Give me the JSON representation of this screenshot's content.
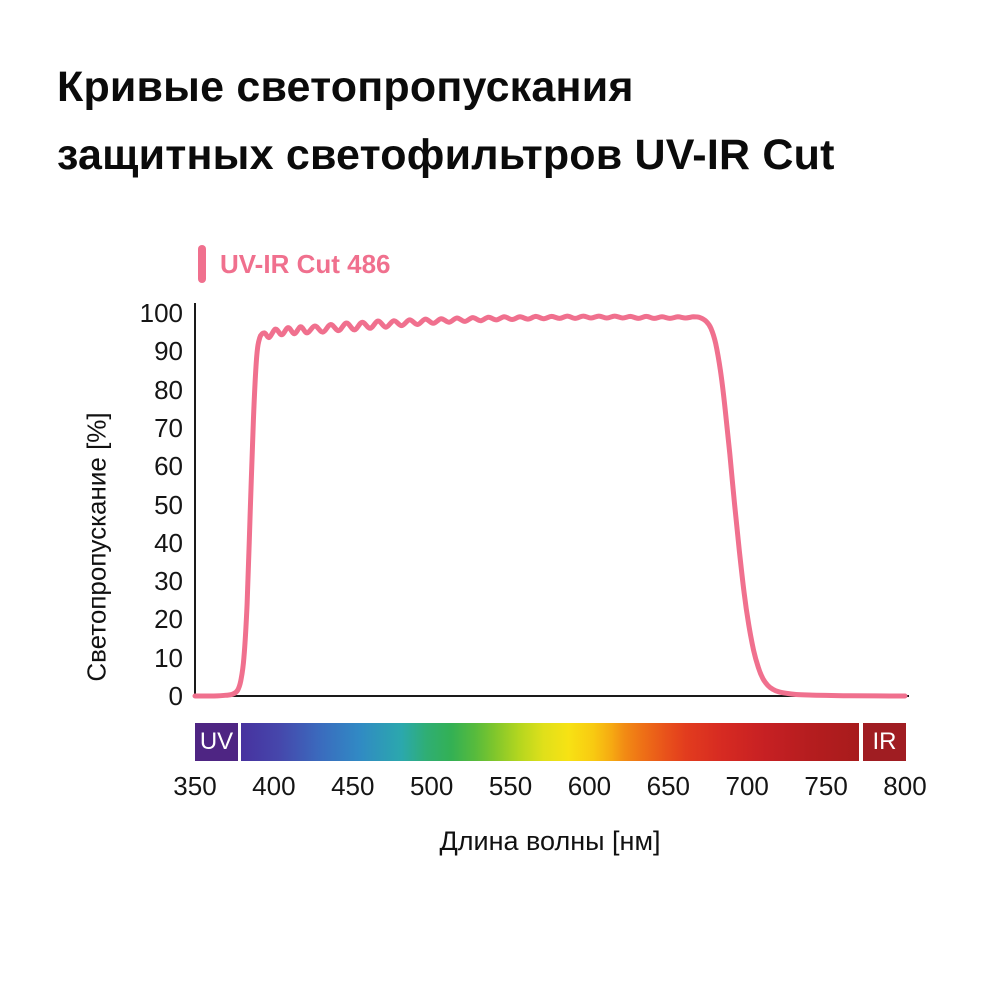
{
  "title": {
    "line1": "Кривые светопропускания",
    "line2": "защитных светофильтров UV-IR Cut"
  },
  "legend": {
    "label": "UV-IR Cut 486",
    "color": "#f0708e"
  },
  "chart_data": {
    "type": "line",
    "title": "Кривые светопропускания защитных светофильтров UV-IR Cut",
    "xlabel": "Длина волны  [нм]",
    "ylabel": "Светопропускание  [%]",
    "xlim": [
      350,
      800
    ],
    "ylim": [
      0,
      100
    ],
    "x_ticks": [
      350,
      400,
      450,
      500,
      550,
      600,
      650,
      700,
      750,
      800
    ],
    "y_ticks": [
      0,
      10,
      20,
      30,
      40,
      50,
      60,
      70,
      80,
      90,
      100
    ],
    "grid": false,
    "legend_position": "top-left",
    "axis_color": "#1a1a1a",
    "series": [
      {
        "name": "UV-IR Cut 486",
        "color": "#f0708e",
        "points": [
          [
            350,
            0
          ],
          [
            362,
            0
          ],
          [
            370,
            0.2
          ],
          [
            374,
            0.5
          ],
          [
            377,
            1.5
          ],
          [
            379,
            4
          ],
          [
            381,
            10
          ],
          [
            383,
            24
          ],
          [
            385,
            48
          ],
          [
            387,
            72
          ],
          [
            389,
            88
          ],
          [
            391,
            93.5
          ],
          [
            394,
            94.8
          ],
          [
            397,
            93.6
          ],
          [
            401,
            95.8
          ],
          [
            405,
            94.3
          ],
          [
            409,
            96.2
          ],
          [
            413,
            94.6
          ],
          [
            417,
            96.4
          ],
          [
            421,
            94.8
          ],
          [
            426,
            96.6
          ],
          [
            431,
            95.0
          ],
          [
            436,
            97.0
          ],
          [
            441,
            95.4
          ],
          [
            446,
            97.4
          ],
          [
            451,
            95.6
          ],
          [
            456,
            97.6
          ],
          [
            461,
            96.0
          ],
          [
            466,
            97.9
          ],
          [
            471,
            96.3
          ],
          [
            476,
            98.0
          ],
          [
            481,
            96.7
          ],
          [
            486,
            98.2
          ],
          [
            491,
            97.0
          ],
          [
            496,
            98.4
          ],
          [
            501,
            97.3
          ],
          [
            506,
            98.5
          ],
          [
            511,
            97.6
          ],
          [
            516,
            98.7
          ],
          [
            521,
            97.8
          ],
          [
            526,
            98.8
          ],
          [
            531,
            98.0
          ],
          [
            536,
            98.9
          ],
          [
            541,
            98.2
          ],
          [
            546,
            99.0
          ],
          [
            551,
            98.3
          ],
          [
            556,
            99.0
          ],
          [
            561,
            98.4
          ],
          [
            566,
            99.1
          ],
          [
            571,
            98.5
          ],
          [
            576,
            99.1
          ],
          [
            581,
            98.6
          ],
          [
            586,
            99.2
          ],
          [
            591,
            98.6
          ],
          [
            596,
            99.2
          ],
          [
            601,
            98.7
          ],
          [
            606,
            99.2
          ],
          [
            611,
            98.7
          ],
          [
            616,
            99.2
          ],
          [
            621,
            98.7
          ],
          [
            626,
            99.1
          ],
          [
            631,
            98.6
          ],
          [
            636,
            99.1
          ],
          [
            641,
            98.6
          ],
          [
            646,
            99.0
          ],
          [
            651,
            98.6
          ],
          [
            656,
            99.0
          ],
          [
            661,
            98.7
          ],
          [
            666,
            99.0
          ],
          [
            670,
            98.8
          ],
          [
            674,
            97.8
          ],
          [
            677,
            96
          ],
          [
            680,
            92
          ],
          [
            683,
            85
          ],
          [
            686,
            75
          ],
          [
            689,
            63
          ],
          [
            692,
            50
          ],
          [
            695,
            38
          ],
          [
            698,
            27
          ],
          [
            701,
            18.5
          ],
          [
            704,
            12
          ],
          [
            707,
            7.5
          ],
          [
            710,
            4.5
          ],
          [
            713,
            2.8
          ],
          [
            716,
            1.8
          ],
          [
            720,
            1.1
          ],
          [
            725,
            0.7
          ],
          [
            731,
            0.4
          ],
          [
            739,
            0.25
          ],
          [
            750,
            0.15
          ],
          [
            765,
            0.05
          ],
          [
            800,
            0
          ]
        ]
      }
    ],
    "spectrum_bar": {
      "uv_label": "UV",
      "ir_label": "IR",
      "uv_color": "#4e2583",
      "ir_color": "#a01d22",
      "gradient_stops": [
        {
          "color": "#47329f",
          "pos": 0
        },
        {
          "color": "#4646ab",
          "pos": 6
        },
        {
          "color": "#3a6cbe",
          "pos": 13
        },
        {
          "color": "#3189c4",
          "pos": 19
        },
        {
          "color": "#2ba8ad",
          "pos": 26
        },
        {
          "color": "#2fae74",
          "pos": 30
        },
        {
          "color": "#33b054",
          "pos": 34
        },
        {
          "color": "#58bb3c",
          "pos": 38
        },
        {
          "color": "#7fc62c",
          "pos": 41
        },
        {
          "color": "#b4d61f",
          "pos": 45
        },
        {
          "color": "#e0e01a",
          "pos": 49
        },
        {
          "color": "#f7e214",
          "pos": 53
        },
        {
          "color": "#f8ca11",
          "pos": 57
        },
        {
          "color": "#f6a912",
          "pos": 60
        },
        {
          "color": "#f28c14",
          "pos": 62
        },
        {
          "color": "#ee7016",
          "pos": 65
        },
        {
          "color": "#e8501b",
          "pos": 69
        },
        {
          "color": "#e23c1e",
          "pos": 72
        },
        {
          "color": "#d62a22",
          "pos": 78
        },
        {
          "color": "#c62023",
          "pos": 85
        },
        {
          "color": "#b51d1f",
          "pos": 92
        },
        {
          "color": "#a81b1c",
          "pos": 100
        }
      ]
    }
  }
}
